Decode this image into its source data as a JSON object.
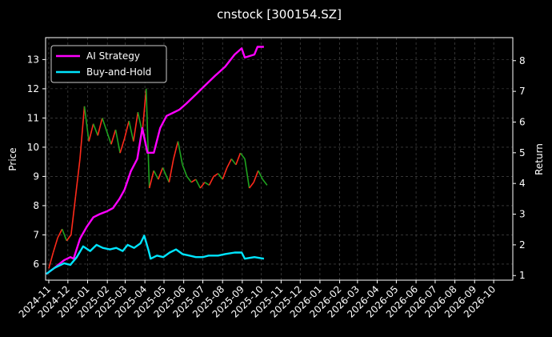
{
  "chart_data": {
    "type": "line",
    "title": "cnstock [300154.SZ]",
    "ylabel_left": "Price",
    "ylabel_right": "Return",
    "ylim_left": [
      5.45,
      13.75
    ],
    "ylim_right": [
      0.85,
      8.75
    ],
    "yticks_left": [
      6,
      7,
      8,
      9,
      10,
      11,
      12,
      13
    ],
    "yticks_right": [
      1,
      2,
      3,
      4,
      5,
      6,
      7,
      8
    ],
    "x_range": [
      "2024-10-27",
      "2026-10-31"
    ],
    "x_ticks": [
      "2024-11",
      "2024-12",
      "2025-01",
      "2025-02",
      "2025-03",
      "2025-04",
      "2025-05",
      "2025-06",
      "2025-07",
      "2025-08",
      "2025-09",
      "2025-10",
      "2025-11",
      "2025-12",
      "2026-01",
      "2026-02",
      "2026-03",
      "2026-04",
      "2026-05",
      "2026-06",
      "2026-07",
      "2026-08",
      "2026-09",
      "2026-10"
    ],
    "grid": true,
    "legend_position": "top-left",
    "colors": {
      "background": "#000000",
      "text": "#ffffff",
      "grid": "#555555",
      "candle_up": "#ff2a1a",
      "candle_down": "#1fa31f",
      "ai_strategy": "#ff00ff",
      "buy_and_hold": "#00e5ff"
    },
    "price_series": {
      "name": "Price",
      "points": [
        [
          "2024-11-01",
          5.85
        ],
        [
          "2024-11-08",
          6.4
        ],
        [
          "2024-11-15",
          6.9
        ],
        [
          "2024-11-22",
          7.2
        ],
        [
          "2024-11-29",
          6.8
        ],
        [
          "2024-12-06",
          7.0
        ],
        [
          "2024-12-13",
          8.3
        ],
        [
          "2024-12-20",
          9.6
        ],
        [
          "2024-12-27",
          11.4
        ],
        [
          "2025-01-03",
          10.2
        ],
        [
          "2025-01-10",
          10.8
        ],
        [
          "2025-01-17",
          10.4
        ],
        [
          "2025-01-24",
          11.0
        ],
        [
          "2025-02-07",
          10.1
        ],
        [
          "2025-02-14",
          10.6
        ],
        [
          "2025-02-21",
          9.8
        ],
        [
          "2025-02-28",
          10.3
        ],
        [
          "2025-03-07",
          10.9
        ],
        [
          "2025-03-14",
          10.2
        ],
        [
          "2025-03-21",
          11.2
        ],
        [
          "2025-03-28",
          10.5
        ],
        [
          "2025-04-03",
          12.0
        ],
        [
          "2025-04-08",
          8.6
        ],
        [
          "2025-04-15",
          9.2
        ],
        [
          "2025-04-22",
          8.9
        ],
        [
          "2025-04-29",
          9.3
        ],
        [
          "2025-05-09",
          8.8
        ],
        [
          "2025-05-16",
          9.6
        ],
        [
          "2025-05-23",
          10.2
        ],
        [
          "2025-05-30",
          9.4
        ],
        [
          "2025-06-06",
          9.0
        ],
        [
          "2025-06-13",
          8.8
        ],
        [
          "2025-06-20",
          8.9
        ],
        [
          "2025-06-27",
          8.6
        ],
        [
          "2025-07-04",
          8.8
        ],
        [
          "2025-07-11",
          8.7
        ],
        [
          "2025-07-18",
          9.0
        ],
        [
          "2025-07-25",
          9.1
        ],
        [
          "2025-08-01",
          8.9
        ],
        [
          "2025-08-08",
          9.3
        ],
        [
          "2025-08-15",
          9.6
        ],
        [
          "2025-08-22",
          9.4
        ],
        [
          "2025-08-29",
          9.8
        ],
        [
          "2025-09-05",
          9.6
        ],
        [
          "2025-09-12",
          8.6
        ],
        [
          "2025-09-19",
          8.8
        ],
        [
          "2025-09-26",
          9.2
        ],
        [
          "2025-10-03",
          8.9
        ],
        [
          "2025-10-10",
          8.7
        ]
      ]
    },
    "series": [
      {
        "name": "AI Strategy",
        "points": [
          [
            "2024-10-28",
            1.05
          ],
          [
            "2024-11-10",
            1.25
          ],
          [
            "2024-11-25",
            1.5
          ],
          [
            "2024-12-05",
            1.6
          ],
          [
            "2024-12-10",
            1.55
          ],
          [
            "2024-12-20",
            2.2
          ],
          [
            "2024-12-31",
            2.6
          ],
          [
            "2025-01-10",
            2.9
          ],
          [
            "2025-01-20",
            3.0
          ],
          [
            "2025-02-01",
            3.1
          ],
          [
            "2025-02-10",
            3.2
          ],
          [
            "2025-02-20",
            3.5
          ],
          [
            "2025-02-28",
            3.8
          ],
          [
            "2025-03-10",
            4.4
          ],
          [
            "2025-03-20",
            4.8
          ],
          [
            "2025-03-28",
            5.8
          ],
          [
            "2025-04-05",
            5.0
          ],
          [
            "2025-04-15",
            5.0
          ],
          [
            "2025-04-25",
            5.8
          ],
          [
            "2025-05-05",
            6.2
          ],
          [
            "2025-05-15",
            6.3
          ],
          [
            "2025-05-25",
            6.4
          ],
          [
            "2025-06-05",
            6.6
          ],
          [
            "2025-06-20",
            6.9
          ],
          [
            "2025-07-05",
            7.2
          ],
          [
            "2025-07-20",
            7.5
          ],
          [
            "2025-08-05",
            7.8
          ],
          [
            "2025-08-20",
            8.2
          ],
          [
            "2025-08-31",
            8.4
          ],
          [
            "2025-09-05",
            8.1
          ],
          [
            "2025-09-20",
            8.2
          ],
          [
            "2025-09-25",
            8.45
          ],
          [
            "2025-10-05",
            8.45
          ]
        ]
      },
      {
        "name": "Buy-and-Hold",
        "points": [
          [
            "2024-10-28",
            1.05
          ],
          [
            "2024-11-10",
            1.25
          ],
          [
            "2024-11-25",
            1.4
          ],
          [
            "2024-12-05",
            1.35
          ],
          [
            "2024-12-15",
            1.6
          ],
          [
            "2024-12-25",
            1.95
          ],
          [
            "2025-01-05",
            1.8
          ],
          [
            "2025-01-15",
            2.0
          ],
          [
            "2025-01-25",
            1.9
          ],
          [
            "2025-02-05",
            1.85
          ],
          [
            "2025-02-15",
            1.9
          ],
          [
            "2025-02-25",
            1.8
          ],
          [
            "2025-03-05",
            2.0
          ],
          [
            "2025-03-15",
            1.9
          ],
          [
            "2025-03-25",
            2.05
          ],
          [
            "2025-03-31",
            2.3
          ],
          [
            "2025-04-07",
            1.8
          ],
          [
            "2025-04-10",
            1.55
          ],
          [
            "2025-04-20",
            1.65
          ],
          [
            "2025-04-30",
            1.6
          ],
          [
            "2025-05-10",
            1.75
          ],
          [
            "2025-05-20",
            1.85
          ],
          [
            "2025-05-30",
            1.7
          ],
          [
            "2025-06-10",
            1.65
          ],
          [
            "2025-06-20",
            1.6
          ],
          [
            "2025-07-01",
            1.6
          ],
          [
            "2025-07-10",
            1.65
          ],
          [
            "2025-07-25",
            1.65
          ],
          [
            "2025-08-05",
            1.7
          ],
          [
            "2025-08-20",
            1.75
          ],
          [
            "2025-08-31",
            1.75
          ],
          [
            "2025-09-05",
            1.55
          ],
          [
            "2025-09-20",
            1.6
          ],
          [
            "2025-10-05",
            1.55
          ]
        ]
      }
    ]
  }
}
